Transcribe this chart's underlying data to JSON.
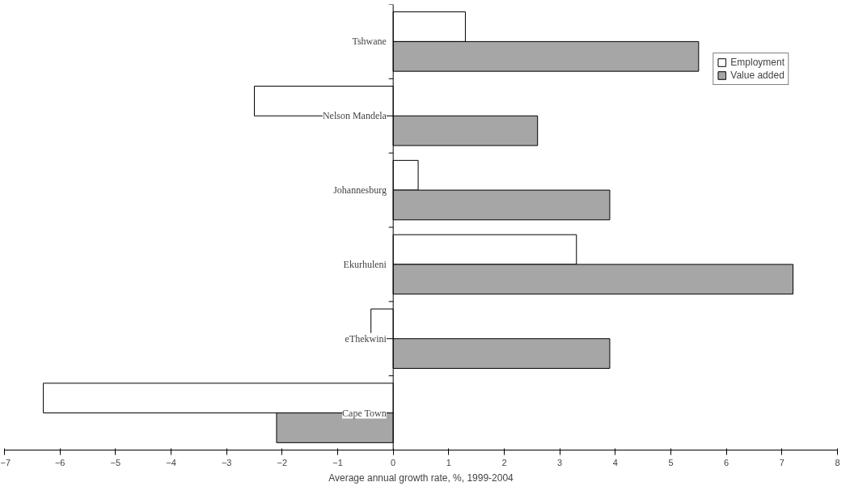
{
  "chart_data": {
    "type": "bar",
    "orientation": "horizontal",
    "xlabel": "Average annual growth rate, %, 1999-2004",
    "categories": [
      "Tshwane",
      "Nelson Mandela",
      "Johannesburg",
      "Ekurhuleni",
      "eThekwini",
      "Cape Town"
    ],
    "series": [
      {
        "name": "Employment",
        "color": "#ffffff",
        "values": [
          1.3,
          -2.5,
          0.45,
          3.3,
          -0.4,
          -6.3
        ]
      },
      {
        "name": "Value added",
        "color": "#a6a6a6",
        "values": [
          5.5,
          2.6,
          3.9,
          7.2,
          3.9,
          -2.1
        ]
      }
    ],
    "xlim": [
      -7,
      8
    ],
    "xticks": [
      -7,
      -6,
      -5,
      -4,
      -3,
      -2,
      -1,
      0,
      1,
      2,
      3,
      4,
      5,
      6,
      7,
      8
    ],
    "grid": false,
    "legend": "top right"
  }
}
